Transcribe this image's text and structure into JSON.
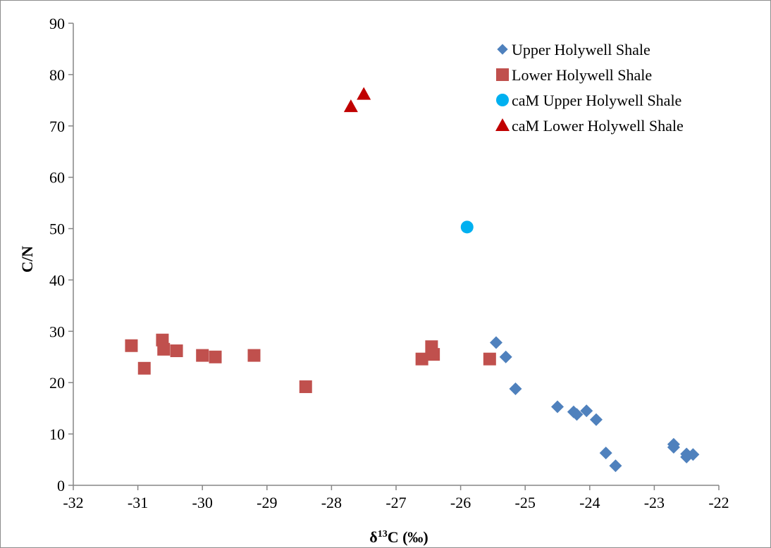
{
  "chart_data": {
    "type": "scatter",
    "xlabel_prefix": "δ",
    "xlabel_sup": "13",
    "xlabel_suffix": "C (‰)",
    "ylabel": "C/N",
    "xlim": [
      -32,
      -22
    ],
    "ylim": [
      0,
      90
    ],
    "x_ticks": [
      -32,
      -31,
      -30,
      -29,
      -28,
      -27,
      -26,
      -25,
      -24,
      -23,
      -22
    ],
    "y_ticks": [
      0,
      10,
      20,
      30,
      40,
      50,
      60,
      70,
      80,
      90
    ],
    "grid": false,
    "legend_position": "top-right",
    "series": [
      {
        "name": "Upper Holywell Shale",
        "marker": "diamond",
        "color": "#4f81bd",
        "points": [
          {
            "x": -25.45,
            "y": 27.8
          },
          {
            "x": -25.3,
            "y": 25.0
          },
          {
            "x": -25.15,
            "y": 18.8
          },
          {
            "x": -24.5,
            "y": 15.3
          },
          {
            "x": -24.25,
            "y": 14.3
          },
          {
            "x": -24.2,
            "y": 13.8
          },
          {
            "x": -24.05,
            "y": 14.5
          },
          {
            "x": -23.9,
            "y": 12.8
          },
          {
            "x": -23.75,
            "y": 6.3
          },
          {
            "x": -23.6,
            "y": 3.8
          },
          {
            "x": -22.7,
            "y": 7.4
          },
          {
            "x": -22.7,
            "y": 8.0
          },
          {
            "x": -22.5,
            "y": 6.1
          },
          {
            "x": -22.5,
            "y": 5.5
          },
          {
            "x": -22.4,
            "y": 6.0
          }
        ]
      },
      {
        "name": "Lower Holywell Shale",
        "marker": "square",
        "color": "#c0504d",
        "points": [
          {
            "x": -31.1,
            "y": 27.2
          },
          {
            "x": -30.9,
            "y": 22.8
          },
          {
            "x": -30.62,
            "y": 28.3
          },
          {
            "x": -30.6,
            "y": 26.5
          },
          {
            "x": -30.4,
            "y": 26.2
          },
          {
            "x": -30.0,
            "y": 25.3
          },
          {
            "x": -29.8,
            "y": 25.0
          },
          {
            "x": -29.2,
            "y": 25.3
          },
          {
            "x": -28.4,
            "y": 19.2
          },
          {
            "x": -26.6,
            "y": 24.6
          },
          {
            "x": -26.45,
            "y": 27.0
          },
          {
            "x": -26.42,
            "y": 25.5
          },
          {
            "x": -25.55,
            "y": 24.6
          }
        ]
      },
      {
        "name": "caM Upper Holywell Shale",
        "marker": "circle",
        "color": "#00b0f0",
        "points": [
          {
            "x": -25.9,
            "y": 50.3
          }
        ]
      },
      {
        "name": "caM Lower Holywell Shale",
        "marker": "triangle",
        "color": "#c00000",
        "points": [
          {
            "x": -27.7,
            "y": 73.8
          },
          {
            "x": -27.5,
            "y": 76.2
          }
        ]
      }
    ]
  }
}
